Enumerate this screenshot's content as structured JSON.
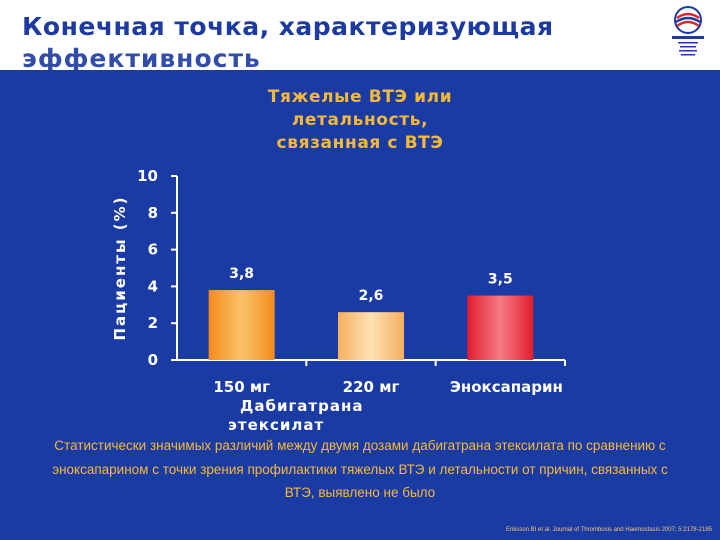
{
  "title_line1": "Конечная точка, характеризующая",
  "title_line2": "эффективность",
  "subtitle_lines": [
    "Тяжелые ВТЭ или",
    "летальность,",
    "связанная с ВТЭ"
  ],
  "chart_data": {
    "type": "bar",
    "ylabel": "Пациенты  (%)",
    "categories": [
      "150 мг",
      "220 мг",
      "Эноксапарин"
    ],
    "values": [
      3.8,
      2.6,
      3.5
    ],
    "value_labels": [
      "3,8",
      "2,6",
      "3,5"
    ],
    "ylim": [
      0,
      10
    ],
    "yticks": [
      0,
      2,
      4,
      6,
      8,
      10
    ],
    "colors": [
      "#f7a23b",
      "#f7c27a",
      "#ea3340"
    ],
    "grid": false
  },
  "group_label_lines": [
    "Дабигатрана",
    "этексилат"
  ],
  "conclusion": "Статистически значимых различий между двумя дозами дабигатрана этексилата по сравнению с эноксапарином  с точки зрения профилактики тяжелых ВТЭ и летальности от причин, связанных с ВТЭ, выявлено не было",
  "citation": "Eriksson BI et al. Journal of Thrombosis and Haemostasis 2007; 5:2178-2185"
}
